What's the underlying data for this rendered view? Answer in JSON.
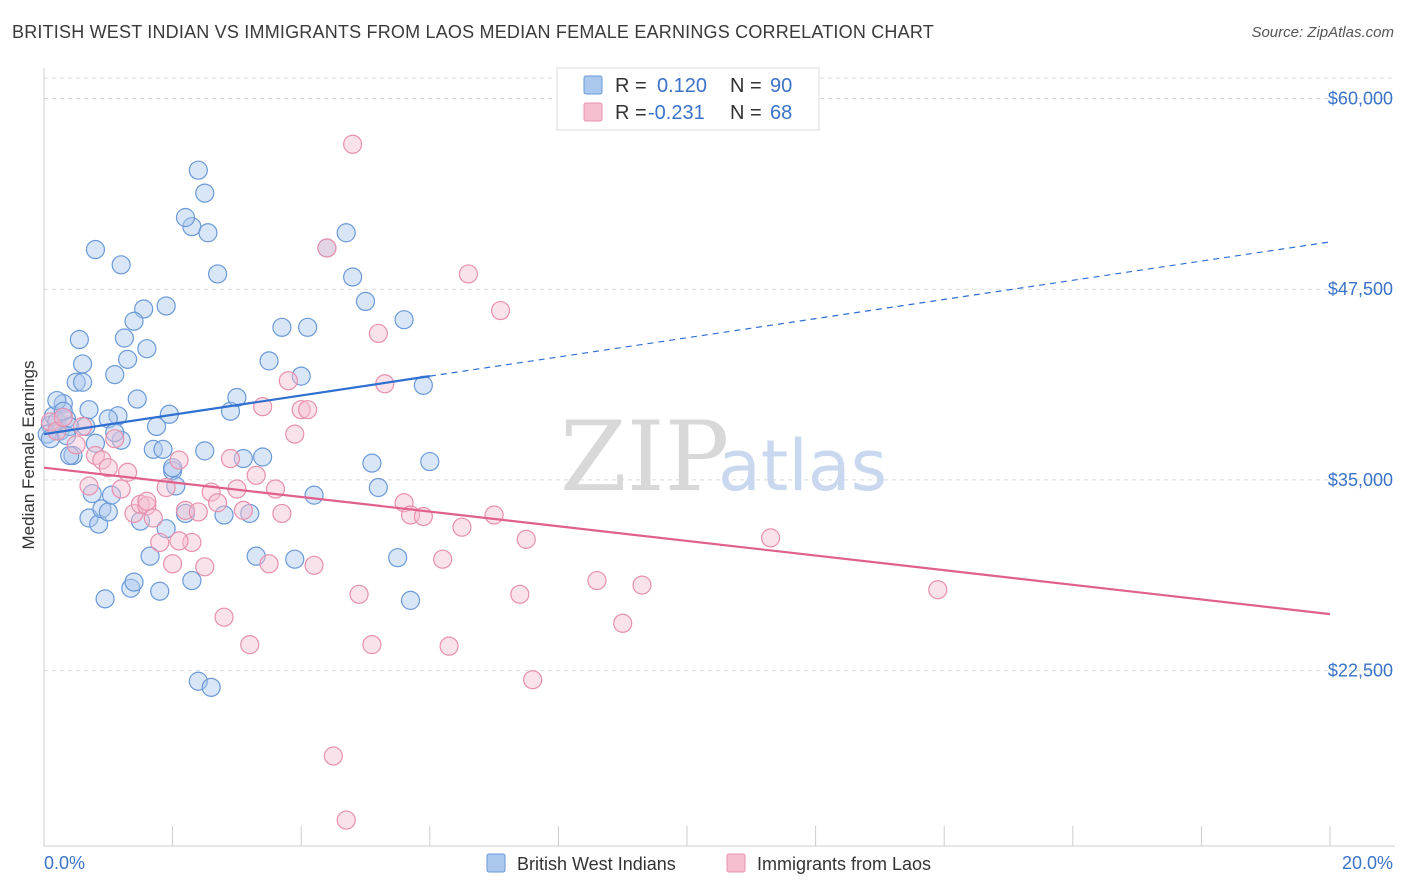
{
  "title": "BRITISH WEST INDIAN VS IMMIGRANTS FROM LAOS MEDIAN FEMALE EARNINGS CORRELATION CHART",
  "source": "Source: ZipAtlas.com",
  "watermark": {
    "zip": "ZIP",
    "atlas": "atlas"
  },
  "colors": {
    "blue_fill": "#aac8ee",
    "blue_stroke": "#6a9ad8",
    "blue_line": "#2f6fd0",
    "pink_fill": "#f5bfd0",
    "pink_stroke": "#e890ac",
    "pink_line": "#e0608c",
    "grid": "#d9d9d9",
    "axis_text": "#3a73c8"
  },
  "legend": {
    "rows": [
      {
        "r_label": "R =",
        "r_value": "0.120",
        "n_label": "N =",
        "n_value": "90"
      },
      {
        "r_label": "R =",
        "r_value": "-0.231",
        "n_label": "N =",
        "n_value": "68"
      }
    ]
  },
  "chart_data": {
    "type": "scatter",
    "xlabel": "",
    "ylabel": "Median Female Earnings",
    "xlim": [
      0,
      20
    ],
    "ylim": [
      11000,
      62000
    ],
    "x_tick_labels": [
      "0.0%",
      "20.0%"
    ],
    "y_ticks": [
      22500,
      35000,
      47500,
      60000
    ],
    "y_tick_labels": [
      "$22,500",
      "$35,000",
      "$47,500",
      "$60,000"
    ],
    "grid": true,
    "legend_position": "top-center",
    "series": [
      {
        "name": "British West Indians",
        "color": "#aac8ee",
        "trend": {
          "x0": 0,
          "y0": 38000,
          "x1": 6,
          "y1": 41800,
          "dash_to_x": 20,
          "dash_to_y": 50600
        },
        "points": [
          [
            0.1,
            38600
          ],
          [
            0.15,
            39200
          ],
          [
            0.2,
            38800
          ],
          [
            0.25,
            38200
          ],
          [
            0.3,
            40000
          ],
          [
            0.35,
            39000
          ],
          [
            0.4,
            38500
          ],
          [
            0.45,
            36600
          ],
          [
            0.5,
            41400
          ],
          [
            0.55,
            44200
          ],
          [
            0.6,
            42600
          ],
          [
            0.65,
            38500
          ],
          [
            0.7,
            32500
          ],
          [
            0.75,
            34100
          ],
          [
            0.8,
            37400
          ],
          [
            0.85,
            32100
          ],
          [
            0.9,
            33100
          ],
          [
            0.95,
            27200
          ],
          [
            1.0,
            32900
          ],
          [
            1.05,
            34000
          ],
          [
            1.1,
            41900
          ],
          [
            1.15,
            39200
          ],
          [
            1.2,
            37600
          ],
          [
            1.25,
            44300
          ],
          [
            1.3,
            42900
          ],
          [
            1.35,
            27900
          ],
          [
            1.4,
            28300
          ],
          [
            1.45,
            40300
          ],
          [
            1.5,
            32300
          ],
          [
            1.55,
            46200
          ],
          [
            1.6,
            43600
          ],
          [
            1.65,
            30000
          ],
          [
            1.7,
            37000
          ],
          [
            1.75,
            38500
          ],
          [
            1.8,
            27700
          ],
          [
            1.85,
            37000
          ],
          [
            1.9,
            46400
          ],
          [
            1.95,
            39300
          ],
          [
            2.0,
            35600
          ],
          [
            2.05,
            34600
          ],
          [
            0.8,
            50100
          ],
          [
            1.2,
            49100
          ],
          [
            1.4,
            45400
          ],
          [
            1.9,
            31800
          ],
          [
            2.0,
            35800
          ],
          [
            2.2,
            32800
          ],
          [
            2.3,
            28400
          ],
          [
            2.4,
            21800
          ],
          [
            2.6,
            21400
          ],
          [
            2.5,
            53800
          ],
          [
            2.4,
            55300
          ],
          [
            2.3,
            51600
          ],
          [
            2.55,
            51200
          ],
          [
            2.2,
            52200
          ],
          [
            2.5,
            36900
          ],
          [
            2.7,
            48500
          ],
          [
            2.8,
            32700
          ],
          [
            2.9,
            39500
          ],
          [
            3.0,
            40400
          ],
          [
            3.1,
            36400
          ],
          [
            3.2,
            32800
          ],
          [
            3.3,
            30000
          ],
          [
            3.5,
            42800
          ],
          [
            3.7,
            45000
          ],
          [
            4.1,
            45000
          ],
          [
            3.4,
            36500
          ],
          [
            4.0,
            41800
          ],
          [
            3.9,
            29800
          ],
          [
            4.2,
            34000
          ],
          [
            4.4,
            50200
          ],
          [
            4.7,
            51200
          ],
          [
            4.8,
            48300
          ],
          [
            5.1,
            36100
          ],
          [
            5.2,
            34500
          ],
          [
            5.0,
            46700
          ],
          [
            5.5,
            29900
          ],
          [
            5.9,
            41200
          ],
          [
            5.7,
            27100
          ],
          [
            6.0,
            36200
          ],
          [
            5.6,
            45500
          ],
          [
            0.05,
            38000
          ],
          [
            0.1,
            37700
          ],
          [
            0.2,
            40200
          ],
          [
            0.3,
            39500
          ],
          [
            0.35,
            37900
          ],
          [
            0.6,
            41400
          ],
          [
            0.7,
            39600
          ],
          [
            1.0,
            39000
          ],
          [
            1.1,
            38100
          ],
          [
            0.4,
            36600
          ]
        ]
      },
      {
        "name": "Immigrants from Laos",
        "color": "#f5bfd0",
        "trend": {
          "x0": 0,
          "y0": 35800,
          "x1": 20,
          "y1": 26200
        },
        "points": [
          [
            0.1,
            38800
          ],
          [
            0.2,
            38200
          ],
          [
            0.3,
            39100
          ],
          [
            0.5,
            37300
          ],
          [
            0.6,
            38500
          ],
          [
            0.7,
            34600
          ],
          [
            0.8,
            36600
          ],
          [
            0.9,
            36300
          ],
          [
            1.0,
            35800
          ],
          [
            1.1,
            37700
          ],
          [
            1.2,
            34400
          ],
          [
            1.3,
            35500
          ],
          [
            1.4,
            32800
          ],
          [
            1.5,
            33400
          ],
          [
            1.6,
            33300
          ],
          [
            1.7,
            32500
          ],
          [
            1.8,
            30900
          ],
          [
            1.9,
            34500
          ],
          [
            2.0,
            29500
          ],
          [
            2.1,
            36300
          ],
          [
            2.2,
            33000
          ],
          [
            2.3,
            30900
          ],
          [
            2.4,
            32900
          ],
          [
            2.5,
            29300
          ],
          [
            2.6,
            34200
          ],
          [
            2.7,
            33500
          ],
          [
            2.8,
            26000
          ],
          [
            2.9,
            36400
          ],
          [
            3.0,
            34400
          ],
          [
            3.1,
            33000
          ],
          [
            3.2,
            24200
          ],
          [
            3.3,
            35300
          ],
          [
            3.4,
            39800
          ],
          [
            3.5,
            29500
          ],
          [
            3.6,
            34400
          ],
          [
            3.7,
            32800
          ],
          [
            3.8,
            41500
          ],
          [
            3.9,
            38000
          ],
          [
            4.0,
            39600
          ],
          [
            4.1,
            39600
          ],
          [
            4.2,
            29400
          ],
          [
            4.4,
            50200
          ],
          [
            4.5,
            16900
          ],
          [
            4.7,
            12700
          ],
          [
            4.8,
            57000
          ],
          [
            4.9,
            27500
          ],
          [
            5.1,
            24200
          ],
          [
            5.2,
            44600
          ],
          [
            5.3,
            41300
          ],
          [
            5.6,
            33500
          ],
          [
            5.7,
            32700
          ],
          [
            5.9,
            32600
          ],
          [
            6.2,
            29800
          ],
          [
            6.3,
            24100
          ],
          [
            6.5,
            31900
          ],
          [
            6.6,
            48500
          ],
          [
            7.0,
            32700
          ],
          [
            7.1,
            46100
          ],
          [
            7.4,
            27500
          ],
          [
            7.5,
            31100
          ],
          [
            7.6,
            21900
          ],
          [
            8.6,
            28400
          ],
          [
            9.0,
            25600
          ],
          [
            9.3,
            28100
          ],
          [
            11.3,
            31200
          ],
          [
            13.9,
            27800
          ],
          [
            1.6,
            33600
          ],
          [
            2.1,
            31000
          ]
        ]
      }
    ]
  }
}
